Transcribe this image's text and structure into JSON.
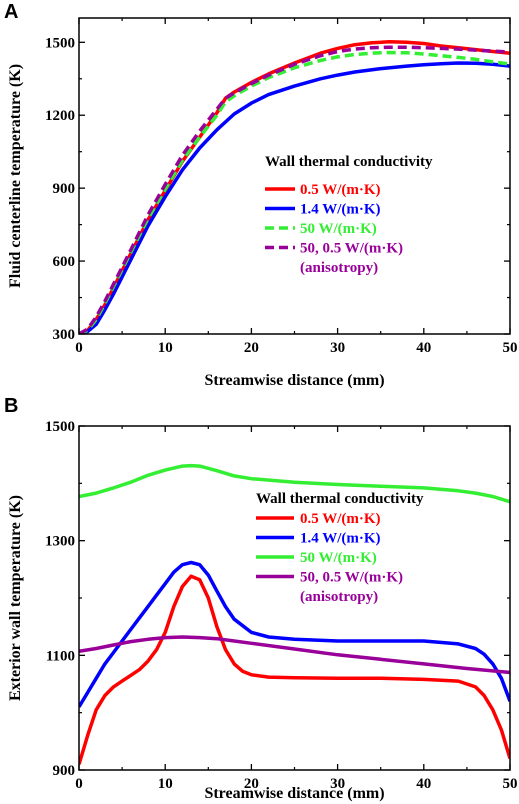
{
  "chart_data": [
    {
      "panel": "A",
      "type": "line",
      "title": "",
      "xlabel": "Streamwise distance (mm)",
      "ylabel": "Fluid centerline temperature (K)",
      "xlim": [
        0,
        50
      ],
      "ylim": [
        300,
        1600
      ],
      "xticks": [
        "0",
        "10",
        "20",
        "30",
        "40",
        "50"
      ],
      "yticks": [
        "300",
        "600",
        "900",
        "1200",
        "1500"
      ],
      "ytick_values": [
        300,
        600,
        900,
        1200,
        1500
      ],
      "grid": false,
      "legend_title": "Wall thermal conductivity",
      "legend_position": "center-right",
      "series": [
        {
          "name": "0.5 W/(m·K)",
          "label_lines": [
            "0.5 W/(m·K)"
          ],
          "color": "#ff0000",
          "dash": "solid",
          "x": [
            0,
            1,
            2,
            3,
            4,
            5,
            6,
            8,
            10,
            12,
            14,
            16,
            17,
            18,
            20,
            22,
            25,
            28,
            30,
            32,
            34,
            36,
            38,
            40,
            42,
            44,
            46,
            48,
            50
          ],
          "y": [
            300,
            315,
            360,
            420,
            490,
            560,
            630,
            770,
            890,
            1010,
            1110,
            1210,
            1270,
            1295,
            1335,
            1370,
            1415,
            1455,
            1475,
            1490,
            1498,
            1502,
            1500,
            1495,
            1485,
            1478,
            1470,
            1462,
            1455
          ]
        },
        {
          "name": "1.4 W/(m·K)",
          "label_lines": [
            "1.4 W/(m·K)"
          ],
          "color": "#0000ff",
          "dash": "solid",
          "x": [
            0,
            1,
            2,
            3,
            4,
            5,
            6,
            8,
            10,
            12,
            14,
            16,
            18,
            20,
            22,
            25,
            28,
            30,
            32,
            35,
            38,
            40,
            42,
            44,
            46,
            48,
            50
          ],
          "y": [
            300,
            310,
            340,
            400,
            465,
            535,
            605,
            745,
            865,
            975,
            1065,
            1140,
            1205,
            1250,
            1285,
            1320,
            1350,
            1365,
            1378,
            1392,
            1402,
            1408,
            1412,
            1415,
            1414,
            1410,
            1402
          ]
        },
        {
          "name": "50 W/(m·K)",
          "label_lines": [
            "50 W/(m·K)"
          ],
          "color": "#33ee33",
          "dash": "dashed",
          "x": [
            0,
            1,
            2,
            3,
            4,
            5,
            6,
            8,
            10,
            12,
            14,
            16,
            17,
            18,
            20,
            22,
            25,
            28,
            30,
            32,
            34,
            36,
            38,
            40,
            42,
            44,
            46,
            48,
            50
          ],
          "y": [
            300,
            315,
            360,
            425,
            495,
            565,
            635,
            775,
            895,
            1015,
            1110,
            1200,
            1255,
            1280,
            1320,
            1355,
            1395,
            1425,
            1440,
            1450,
            1455,
            1458,
            1457,
            1452,
            1445,
            1438,
            1430,
            1420,
            1410
          ]
        },
        {
          "name": "50, 0.5 W/(m·K) (anisotropy)",
          "label_lines": [
            "50, 0.5 W/(m·K)",
            "(anisotropy)"
          ],
          "color": "#990099",
          "dash": "dashed",
          "x": [
            0,
            1,
            2,
            3,
            4,
            5,
            6,
            8,
            10,
            12,
            14,
            16,
            17,
            18,
            20,
            22,
            25,
            28,
            30,
            32,
            34,
            36,
            38,
            40,
            42,
            44,
            46,
            48,
            50
          ],
          "y": [
            300,
            320,
            370,
            435,
            505,
            575,
            645,
            790,
            915,
            1035,
            1135,
            1225,
            1270,
            1292,
            1330,
            1365,
            1410,
            1445,
            1462,
            1472,
            1478,
            1480,
            1480,
            1478,
            1475,
            1472,
            1468,
            1464,
            1460
          ]
        }
      ]
    },
    {
      "panel": "B",
      "type": "line",
      "title": "",
      "xlabel": "Streamwise distance (mm)",
      "ylabel": "Exterior wall temperature (K)",
      "xlim": [
        0,
        50
      ],
      "ylim": [
        900,
        1500
      ],
      "xticks": [
        "0",
        "10",
        "20",
        "30",
        "40",
        "50"
      ],
      "yticks": [
        "900",
        "1100",
        "1300",
        "1500"
      ],
      "ytick_values": [
        900,
        1100,
        1300,
        1500
      ],
      "grid": false,
      "legend_title": "Wall thermal conductivity",
      "legend_position": "center-right",
      "series": [
        {
          "name": "0.5 W/(m·K)",
          "label_lines": [
            "0.5 W/(m·K)"
          ],
          "color": "#ff0000",
          "dash": "solid",
          "x": [
            0,
            1,
            2,
            3,
            4,
            5,
            6,
            7,
            8,
            9,
            10,
            11,
            12,
            13,
            14,
            15,
            16,
            17,
            18,
            19,
            20,
            22,
            25,
            30,
            35,
            40,
            44,
            46,
            47,
            48,
            49,
            50
          ],
          "y": [
            910,
            960,
            1005,
            1030,
            1045,
            1055,
            1065,
            1075,
            1090,
            1110,
            1140,
            1185,
            1220,
            1238,
            1232,
            1200,
            1150,
            1110,
            1085,
            1072,
            1066,
            1062,
            1061,
            1060,
            1060,
            1058,
            1055,
            1045,
            1030,
            1005,
            970,
            920
          ]
        },
        {
          "name": "1.4 W/(m·K)",
          "label_lines": [
            "1.4 W/(m·K)"
          ],
          "color": "#0000ff",
          "dash": "solid",
          "x": [
            0,
            1,
            2,
            3,
            4,
            5,
            6,
            7,
            8,
            9,
            10,
            11,
            12,
            13,
            14,
            15,
            16,
            17,
            18,
            20,
            22,
            25,
            30,
            35,
            40,
            44,
            46,
            47,
            48,
            49,
            50
          ],
          "y": [
            1010,
            1035,
            1060,
            1085,
            1105,
            1125,
            1145,
            1165,
            1185,
            1205,
            1225,
            1245,
            1258,
            1262,
            1258,
            1240,
            1212,
            1185,
            1163,
            1140,
            1132,
            1128,
            1125,
            1125,
            1125,
            1120,
            1112,
            1102,
            1085,
            1060,
            1020
          ]
        },
        {
          "name": "50 W/(m·K)",
          "label_lines": [
            "50 W/(m·K)"
          ],
          "color": "#33ee33",
          "dash": "solid",
          "x": [
            0,
            2,
            4,
            6,
            8,
            10,
            12,
            13,
            14,
            16,
            18,
            20,
            25,
            30,
            35,
            40,
            44,
            46,
            48,
            50
          ],
          "y": [
            1377,
            1383,
            1392,
            1402,
            1414,
            1423,
            1430,
            1431,
            1430,
            1422,
            1413,
            1408,
            1402,
            1398,
            1395,
            1392,
            1387,
            1383,
            1377,
            1368
          ]
        },
        {
          "name": "50, 0.5 W/(m·K) (anisotropy)",
          "label_lines": [
            "50, 0.5 W/(m·K)",
            "(anisotropy)"
          ],
          "color": "#990099",
          "dash": "solid",
          "x": [
            0,
            2,
            4,
            6,
            8,
            10,
            12,
            14,
            16,
            18,
            20,
            25,
            30,
            35,
            40,
            45,
            50
          ],
          "y": [
            1107,
            1112,
            1118,
            1124,
            1128,
            1131,
            1132,
            1131,
            1129,
            1125,
            1121,
            1111,
            1101,
            1093,
            1085,
            1077,
            1070
          ]
        }
      ]
    }
  ]
}
